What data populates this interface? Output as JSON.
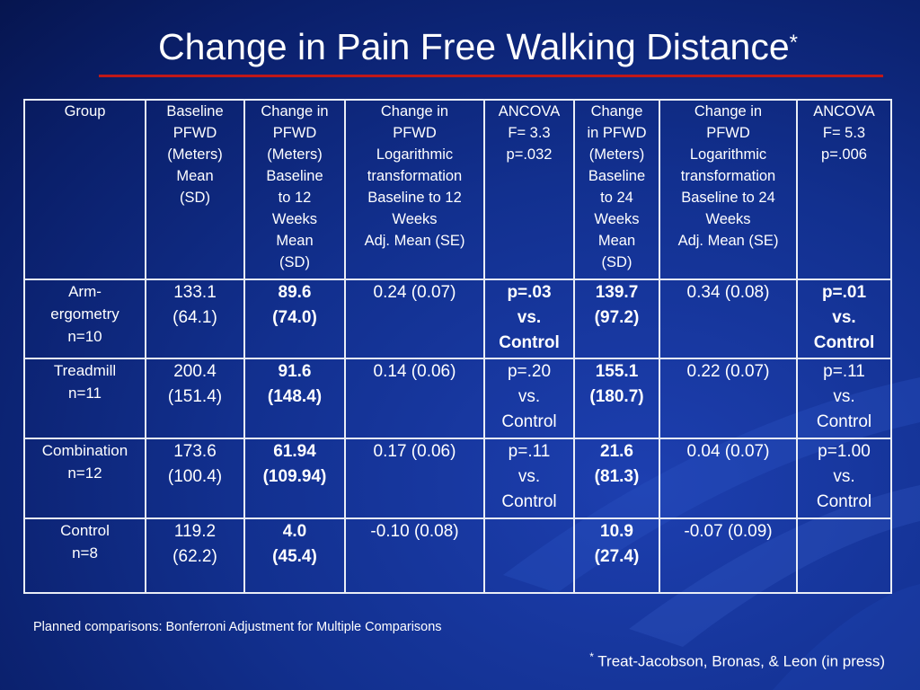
{
  "title": "Change in Pain Free Walking Distance",
  "title_mark": "*",
  "headers": [
    "Group",
    "Baseline\nPFWD\n(Meters)\nMean\n(SD)",
    "Change in\nPFWD\n(Meters)\nBaseline\nto 12\nWeeks\nMean\n(SD)",
    "Change in\nPFWD\nLogarithmic\ntransformation\nBaseline to 12\nWeeks\nAdj. Mean (SE)",
    "ANCOVA\nF= 3.3\np=.032",
    "Change\nin PFWD\n(Meters)\nBaseline\nto 24\nWeeks\nMean\n(SD)",
    "Change in\nPFWD\nLogarithmic\ntransformation\nBaseline to 24\nWeeks\nAdj. Mean (SE)",
    "ANCOVA\nF= 5.3\np=.006"
  ],
  "rows": [
    {
      "group": "Arm-\nergometry\nn=10",
      "baseline": "133.1\n(64.1)",
      "change12": "89.6\n(74.0)",
      "log12": "0.24 (0.07)",
      "ancova12": "p=.03\nvs.\nControl",
      "change24": "139.7\n(97.2)",
      "log24": "0.34 (0.08)",
      "ancova24": "p=.01\nvs.\nControl",
      "ancova12_bold": true,
      "ancova24_bold": true
    },
    {
      "group": "Treadmill\nn=11",
      "baseline": "200.4\n(151.4)",
      "change12": "91.6\n(148.4)",
      "log12": "0.14 (0.06)",
      "ancova12": "p=.20\nvs.\nControl",
      "change24": "155.1\n(180.7)",
      "log24": "0.22 (0.07)",
      "ancova24": "p=.11\nvs.\nControl",
      "ancova12_bold": false,
      "ancova24_bold": false
    },
    {
      "group": "Combination\nn=12",
      "baseline": "173.6\n(100.4)",
      "change12": "61.94\n(109.94)",
      "log12": "0.17 (0.06)",
      "ancova12": "p=.11\nvs.\nControl",
      "change24": "21.6\n(81.3)",
      "log24": "0.04 (0.07)",
      "ancova24": "p=1.00\nvs.\nControl",
      "ancova12_bold": false,
      "ancova24_bold": false
    },
    {
      "group": "Control\nn=8",
      "baseline": "119.2\n(62.2)",
      "change12": "4.0\n(45.4)",
      "log12": "-0.10 (0.08)",
      "ancova12": "",
      "change24": "10.9\n(27.4)",
      "log24": "-0.07 (0.09)",
      "ancova24": "",
      "ancova12_bold": false,
      "ancova24_bold": false
    }
  ],
  "footnote": "Planned comparisons: Bonferroni Adjustment for Multiple Comparisons",
  "citation_mark": "*",
  "citation": "Treat-Jacobson, Bronas, & Leon (in press)",
  "colors": {
    "background": "#12308f",
    "title_rule": "#c01818",
    "grid": "#e9edf6",
    "text": "#ffffff"
  }
}
